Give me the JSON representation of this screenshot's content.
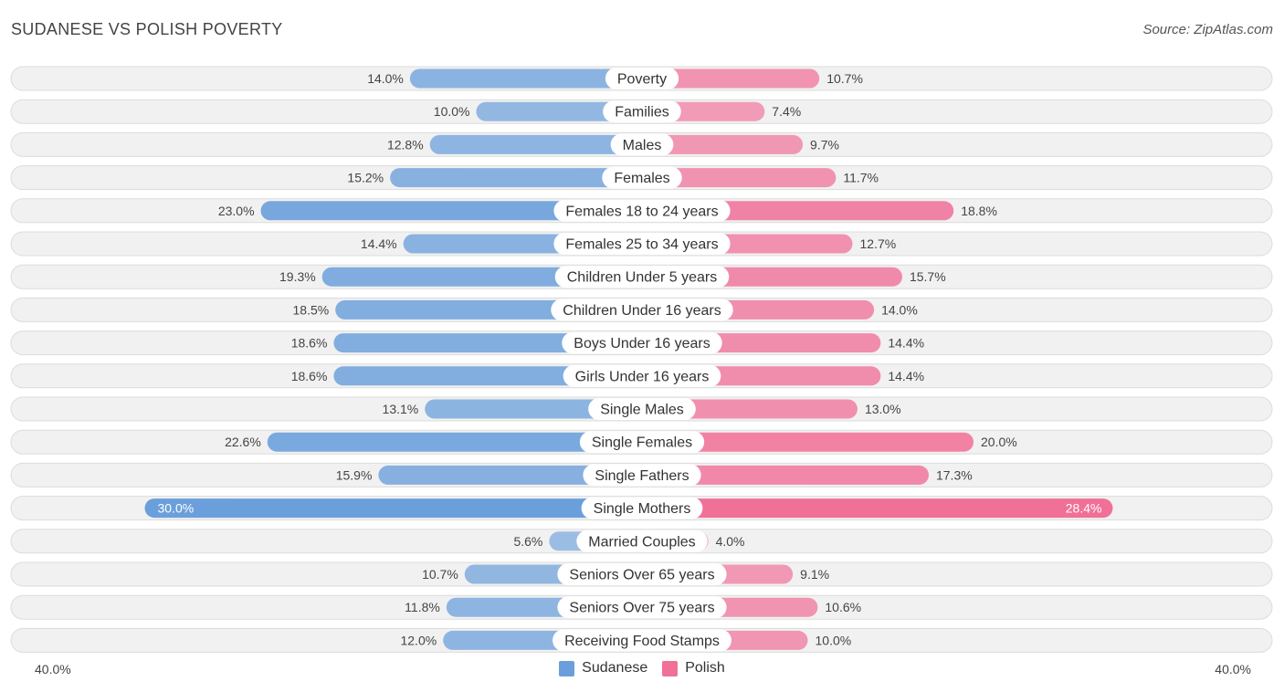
{
  "title": "SUDANESE VS POLISH POVERTY",
  "source": "Source: ZipAtlas.com",
  "chart_data": {
    "type": "bar",
    "orientation": "diverging-horizontal",
    "title": "SUDANESE VS POLISH POVERTY",
    "axis_max": 40.0,
    "axis_left_label": "40.0%",
    "axis_right_label": "40.0%",
    "categories": [
      "Poverty",
      "Families",
      "Males",
      "Females",
      "Females 18 to 24 years",
      "Females 25 to 34 years",
      "Children Under 5 years",
      "Children Under 16 years",
      "Boys Under 16 years",
      "Girls Under 16 years",
      "Single Males",
      "Single Females",
      "Single Fathers",
      "Single Mothers",
      "Married Couples",
      "Seniors Over 65 years",
      "Seniors Over 75 years",
      "Receiving Food Stamps"
    ],
    "series": [
      {
        "name": "Sudanese",
        "color": "#6a9fdb",
        "values": [
          14.0,
          10.0,
          12.8,
          15.2,
          23.0,
          14.4,
          19.3,
          18.5,
          18.6,
          18.6,
          13.1,
          22.6,
          15.9,
          30.0,
          5.6,
          10.7,
          11.8,
          12.0
        ],
        "labels": [
          "14.0%",
          "10.0%",
          "12.8%",
          "15.2%",
          "23.0%",
          "14.4%",
          "19.3%",
          "18.5%",
          "18.6%",
          "18.6%",
          "13.1%",
          "22.6%",
          "15.9%",
          "30.0%",
          "5.6%",
          "10.7%",
          "11.8%",
          "12.0%"
        ]
      },
      {
        "name": "Polish",
        "color": "#f07098",
        "values": [
          10.7,
          7.4,
          9.7,
          11.7,
          18.8,
          12.7,
          15.7,
          14.0,
          14.4,
          14.4,
          13.0,
          20.0,
          17.3,
          28.4,
          4.0,
          9.1,
          10.6,
          10.0
        ],
        "labels": [
          "10.7%",
          "7.4%",
          "9.7%",
          "11.7%",
          "18.8%",
          "12.7%",
          "15.7%",
          "14.0%",
          "14.4%",
          "14.4%",
          "13.0%",
          "20.0%",
          "17.3%",
          "28.4%",
          "4.0%",
          "9.1%",
          "10.6%",
          "10.0%"
        ]
      }
    ],
    "legend": [
      "Sudanese",
      "Polish"
    ],
    "legend_position": "bottom-center"
  }
}
